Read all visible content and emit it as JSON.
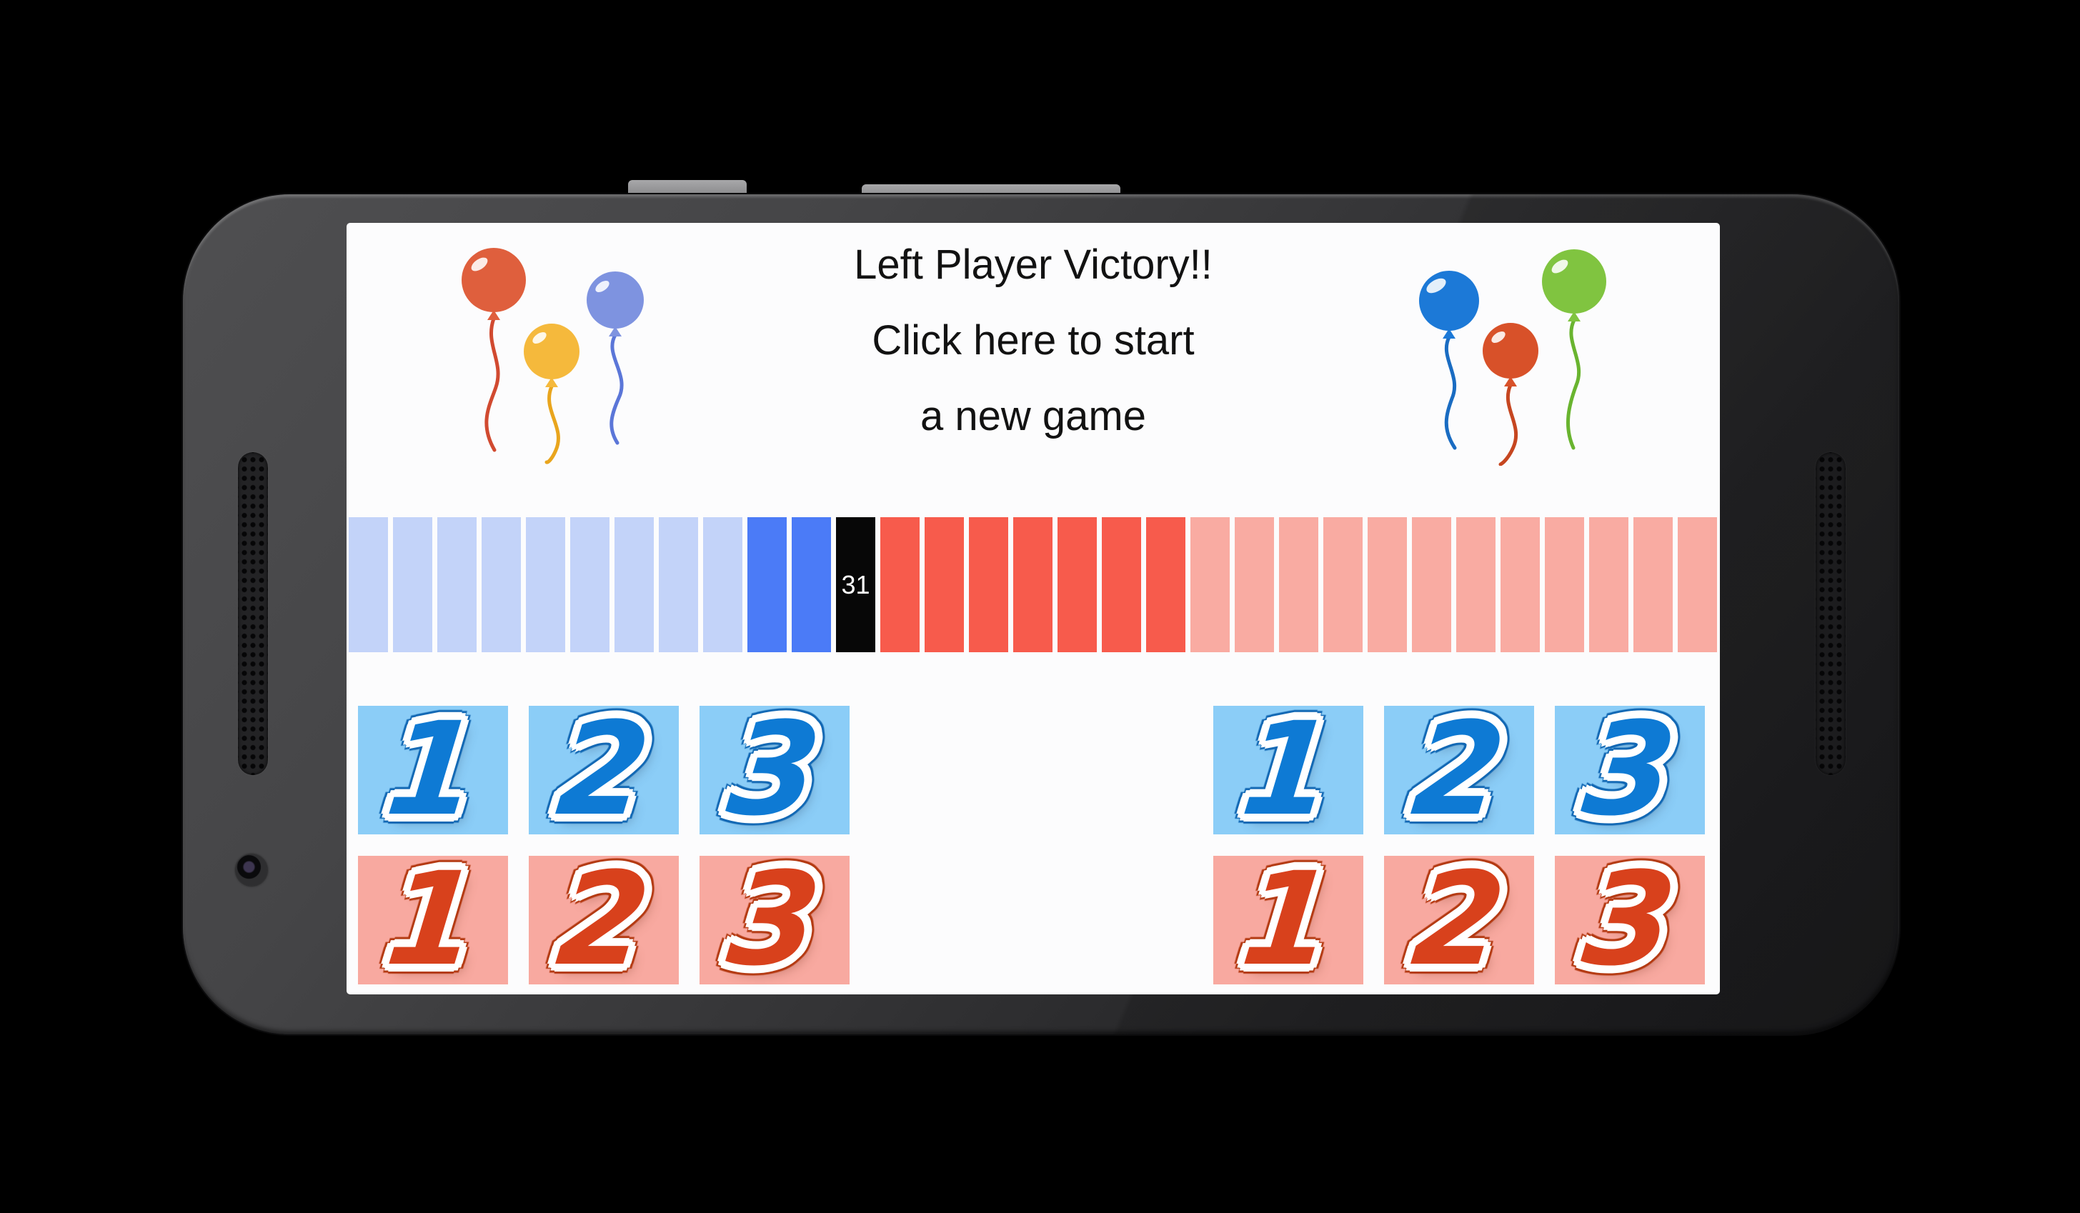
{
  "device": {
    "type": "android-phone-landscape",
    "body_color": "#3a3a3c",
    "screen_bg": "#fcfcfd"
  },
  "screen": {
    "title_lines": [
      "Left Player Victory!!",
      "Click here to start",
      "a new game"
    ],
    "balloons": {
      "left": [
        {
          "name": "red",
          "fill": "#df5f3d",
          "string": "#d14a30"
        },
        {
          "name": "yellow",
          "fill": "#f5b93c",
          "string": "#e9a51d"
        },
        {
          "name": "blue",
          "fill": "#7e93e0",
          "string": "#5b76d8"
        }
      ],
      "right": [
        {
          "name": "blue",
          "fill": "#1c79d7",
          "string": "#1a6cc2"
        },
        {
          "name": "red",
          "fill": "#d85129",
          "string": "#c64620"
        },
        {
          "name": "green",
          "fill": "#80c440",
          "string": "#69b42f"
        }
      ]
    },
    "progress_bar": {
      "marker_label": "31",
      "colors": {
        "blue_light": "#c3d3f9",
        "blue": "#4b7bf7",
        "marker": "#070707",
        "red": "#f75b4c",
        "red_light": "#f9aba2"
      },
      "segments": [
        "blue_light",
        "blue_light",
        "blue_light",
        "blue_light",
        "blue_light",
        "blue_light",
        "blue_light",
        "blue_light",
        "blue_light",
        "blue",
        "blue",
        "marker",
        "red",
        "red",
        "red",
        "red",
        "red",
        "red",
        "red",
        "red_light",
        "red_light",
        "red_light",
        "red_light",
        "red_light",
        "red_light",
        "red_light",
        "red_light",
        "red_light",
        "red_light",
        "red_light",
        "red_light"
      ]
    },
    "keypad_colors": {
      "blue_bg": "#8bcdf7",
      "blue_digit": "#0e7ad4",
      "red_bg": "#f8a9a0",
      "red_digit": "#d8411c"
    },
    "keypads": [
      {
        "id": "left-blue",
        "theme": "blue",
        "buttons": [
          "1",
          "2",
          "3"
        ]
      },
      {
        "id": "right-blue",
        "theme": "blue",
        "buttons": [
          "1",
          "2",
          "3"
        ]
      },
      {
        "id": "left-red",
        "theme": "red",
        "buttons": [
          "1",
          "2",
          "3"
        ]
      },
      {
        "id": "right-red",
        "theme": "red",
        "buttons": [
          "1",
          "2",
          "3"
        ]
      }
    ]
  }
}
